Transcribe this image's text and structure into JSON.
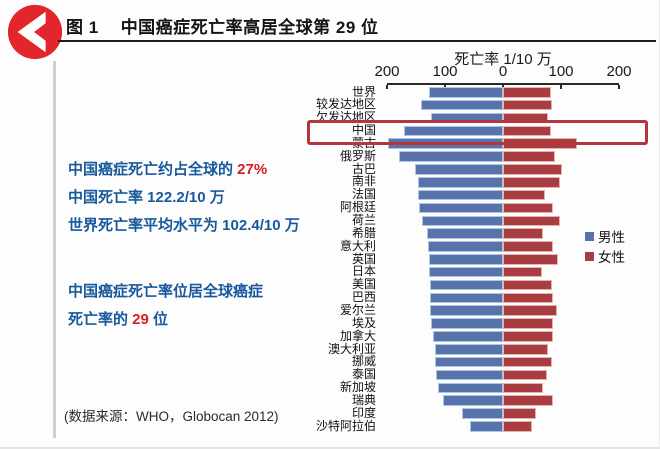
{
  "header": {
    "figure_label": "图 1",
    "title": "中国癌症死亡率高居全球第 29 位"
  },
  "annotations": {
    "block1_line1_prefix": "中国癌症死亡约占全球的 ",
    "block1_line1_highlight": "27%",
    "block1_line2": "中国死亡率 122.2/10 万",
    "block1_line3": "世界死亡率平均水平为 102.4/10 万",
    "block2_line1": "中国癌症死亡率位居全球癌症",
    "block2_line2_prefix": "死亡率的 ",
    "block2_line2_highlight": "29",
    "block2_line2_suffix": " 位"
  },
  "source_note": "(数据来源：WHO，Globocan 2012)",
  "colors": {
    "male_fill": "#5873ac",
    "male_border": "#a9c6e4",
    "female_fill": "#a83c40",
    "female_border": "#e6b3ab",
    "highlight_box": "#b2363b",
    "icon_red": "#e2262c",
    "note_blue": "#17599c",
    "note_red": "#d6201f"
  },
  "chart_data": {
    "type": "bar",
    "subtype": "diverging-horizontal-tornado",
    "title": "死亡率 1/10 万",
    "xlabel": "死亡率 1/10 万",
    "ylabel": "",
    "axis_range": [
      -200,
      200
    ],
    "x_ticks": [
      "200",
      "100",
      "0",
      "100",
      "200"
    ],
    "x_tick_values": [
      -200,
      -100,
      0,
      100,
      200
    ],
    "grid": false,
    "legend_position": "right",
    "highlighted_category": "中国",
    "categories": [
      "世界",
      "较发达地区",
      "欠发达地区",
      "中国",
      "蒙古",
      "俄罗斯",
      "古巴",
      "南非",
      "法国",
      "阿根廷",
      "荷兰",
      "希腊",
      "意大利",
      "英国",
      "日本",
      "美国",
      "巴西",
      "爱尔兰",
      "埃及",
      "加拿大",
      "澳大利亚",
      "挪威",
      "泰国",
      "新加坡",
      "瑞典",
      "印度",
      "沙特阿拉伯"
    ],
    "series": [
      {
        "name": "男性",
        "direction": "left",
        "color": "#5873ac",
        "values": [
          128,
          142,
          125,
          170,
          198,
          180,
          152,
          146,
          146,
          144,
          140,
          131,
          129,
          128,
          128,
          126,
          126,
          126,
          124,
          120,
          118,
          117,
          116,
          112,
          103,
          71,
          57
        ]
      },
      {
        "name": "女性",
        "direction": "right",
        "color": "#a83c40",
        "values": [
          82,
          85,
          78,
          83,
          128,
          90,
          101,
          98,
          72,
          86,
          98,
          69,
          86,
          95,
          67,
          85,
          86,
          93,
          86,
          86,
          78,
          85,
          76,
          69,
          86,
          57,
          50
        ]
      }
    ]
  }
}
